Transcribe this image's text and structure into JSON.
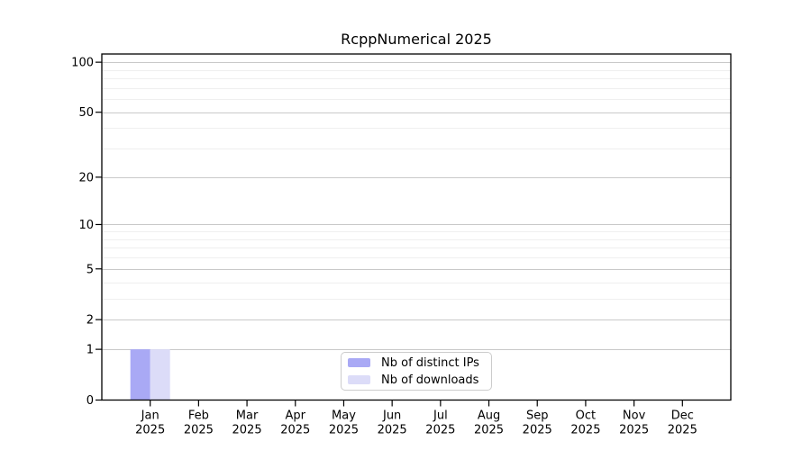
{
  "chart_data": {
    "type": "bar",
    "title": "RcppNumerical 2025",
    "categories": [
      "Jan",
      "Feb",
      "Mar",
      "Apr",
      "May",
      "Jun",
      "Jul",
      "Aug",
      "Sep",
      "Oct",
      "Nov",
      "Dec"
    ],
    "x_year": "2025",
    "series": [
      {
        "name": "Nb of distinct IPs",
        "color": "#a9a9f5",
        "values": [
          1,
          0,
          0,
          0,
          0,
          0,
          0,
          0,
          0,
          0,
          0,
          0
        ]
      },
      {
        "name": "Nb of downloads",
        "color": "#dcdcf8",
        "values": [
          1,
          0,
          0,
          0,
          0,
          0,
          0,
          0,
          0,
          0,
          0,
          0
        ]
      }
    ],
    "y_scale": "log1p",
    "y_ticks": [
      0,
      1,
      2,
      5,
      10,
      20,
      50,
      100
    ],
    "y_minor_ticks": [
      3,
      4,
      6,
      7,
      8,
      9,
      30,
      40,
      60,
      70,
      80,
      90
    ],
    "ylim": [
      0,
      112
    ],
    "xlabel": "",
    "ylabel": "",
    "grid": "horizontal",
    "legend_position": "inside-bottom-center",
    "colors": {
      "major_gridline": "#c9c9c9",
      "minor_gridline": "#efefef",
      "axis": "#000000",
      "text": "#000000"
    }
  }
}
